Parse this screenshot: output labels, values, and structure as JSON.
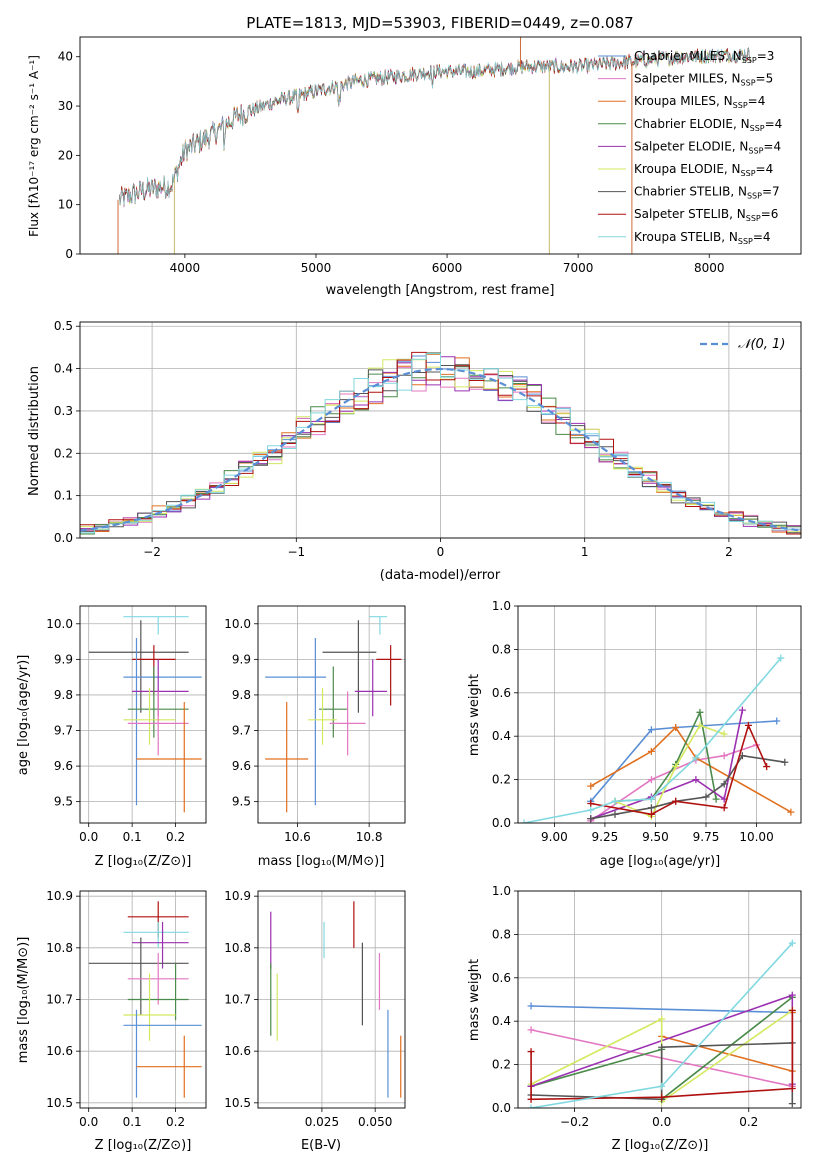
{
  "colors": {
    "chabrier_miles": "#5a8fd6",
    "salpeter_miles": "#e377c2",
    "kroupa_miles": "#e07020",
    "chabrier_elodie": "#4a8a4a",
    "salpeter_elodie": "#9b30b0",
    "kroupa_elodie": "#d4e860",
    "chabrier_stelib": "#555555",
    "salpeter_stelib": "#b01010",
    "kroupa_stelib": "#80d8e0"
  },
  "chart_data": [
    {
      "id": "spectrum",
      "type": "line",
      "title": "PLATE=1813, MJD=53903, FIBERID=0449, z=0.087",
      "xlabel": "wavelength [Angstrom, rest frame]",
      "ylabel": "Flux [fλ10⁻¹⁷ erg cm⁻² s⁻¹ A⁻¹]",
      "xlim": [
        3200,
        8700
      ],
      "ylim": [
        0,
        44
      ],
      "xticks": [
        4000,
        5000,
        6000,
        7000,
        8000
      ],
      "yticks": [
        0,
        10,
        20,
        30,
        40
      ],
      "continuum": [
        [
          3500,
          11
        ],
        [
          3700,
          13
        ],
        [
          3900,
          14
        ],
        [
          4000,
          21
        ],
        [
          4200,
          24
        ],
        [
          4400,
          28
        ],
        [
          4700,
          31
        ],
        [
          5000,
          33
        ],
        [
          5300,
          35
        ],
        [
          5600,
          36
        ],
        [
          5900,
          37
        ],
        [
          6200,
          37
        ],
        [
          6600,
          38
        ],
        [
          7000,
          38
        ],
        [
          7400,
          39
        ],
        [
          7800,
          40
        ],
        [
          8300,
          40.5
        ]
      ],
      "spikes": [
        [
          3490,
          0
        ],
        [
          3920,
          0
        ],
        [
          6560,
          45
        ],
        [
          6780,
          0
        ],
        [
          7410,
          0
        ]
      ],
      "legend": [
        {
          "label": "Chabrier MILES, N",
          "sub": "SSP",
          "val": "=3",
          "color_key": "chabrier_miles"
        },
        {
          "label": "Salpeter MILES, N",
          "sub": "SSP",
          "val": "=5",
          "color_key": "salpeter_miles"
        },
        {
          "label": "Kroupa MILES, N",
          "sub": "SSP",
          "val": "=4",
          "color_key": "kroupa_miles"
        },
        {
          "label": "Chabrier ELODIE, N",
          "sub": "SSP",
          "val": "=4",
          "color_key": "chabrier_elodie"
        },
        {
          "label": "Salpeter ELODIE, N",
          "sub": "SSP",
          "val": "=4",
          "color_key": "salpeter_elodie"
        },
        {
          "label": "Kroupa ELODIE, N",
          "sub": "SSP",
          "val": "=4",
          "color_key": "kroupa_elodie"
        },
        {
          "label": "Chabrier STELIB, N",
          "sub": "SSP",
          "val": "=7",
          "color_key": "chabrier_stelib"
        },
        {
          "label": "Salpeter STELIB, N",
          "sub": "SSP",
          "val": "=6",
          "color_key": "salpeter_stelib"
        },
        {
          "label": "Kroupa STELIB, N",
          "sub": "SSP",
          "val": "=4",
          "color_key": "kroupa_stelib"
        }
      ]
    },
    {
      "id": "residuals",
      "type": "step",
      "xlabel": "(data-model)/error",
      "ylabel": "Normed distribution",
      "xlim": [
        -2.5,
        2.5
      ],
      "ylim": [
        0,
        0.51
      ],
      "xticks": [
        -2,
        -1,
        0,
        1,
        2
      ],
      "yticks": [
        0.0,
        0.1,
        0.2,
        0.3,
        0.4,
        0.5
      ],
      "bin_width": 0.1,
      "legend_label": "𝒩(0, 1)",
      "gaussian": {
        "mu": 0,
        "sigma": 1,
        "color": "#5a8fd6"
      }
    },
    {
      "id": "z-age",
      "type": "errorbar",
      "xlabel": "Z [log₁₀(Z/Z⊙)]",
      "ylabel": "age  [log₁₀(age/yr)]",
      "xlim": [
        -0.02,
        0.27
      ],
      "ylim": [
        9.44,
        10.05
      ],
      "xticks": [
        0.0,
        0.1,
        0.2
      ],
      "yticks": [
        9.5,
        9.6,
        9.7,
        9.8,
        9.9,
        10.0
      ],
      "points": [
        {
          "k": "kroupa_stelib",
          "x": 0.16,
          "xerr": [
            0.08,
            0.23
          ],
          "y": 10.02,
          "yerr": [
            9.97,
            10.02
          ]
        },
        {
          "k": "chabrier_stelib",
          "x": 0.12,
          "xerr": [
            0.0,
            0.23
          ],
          "y": 9.92,
          "yerr": [
            9.75,
            10.01
          ]
        },
        {
          "k": "salpeter_stelib",
          "x": 0.15,
          "xerr": [
            0.1,
            0.2
          ],
          "y": 9.9,
          "yerr": [
            9.8,
            9.94
          ]
        },
        {
          "k": "chabrier_miles",
          "x": 0.11,
          "xerr": [
            0.08,
            0.26
          ],
          "y": 9.85,
          "yerr": [
            9.49,
            9.96
          ]
        },
        {
          "k": "salpeter_elodie",
          "x": 0.16,
          "xerr": [
            0.1,
            0.23
          ],
          "y": 9.81,
          "yerr": [
            9.74,
            9.9
          ]
        },
        {
          "k": "chabrier_elodie",
          "x": 0.15,
          "xerr": [
            0.09,
            0.23
          ],
          "y": 9.76,
          "yerr": [
            9.68,
            9.88
          ]
        },
        {
          "k": "kroupa_elodie",
          "x": 0.14,
          "xerr": [
            0.08,
            0.2
          ],
          "y": 9.73,
          "yerr": [
            9.66,
            9.82
          ]
        },
        {
          "k": "salpeter_miles",
          "x": 0.16,
          "xerr": [
            0.09,
            0.23
          ],
          "y": 9.72,
          "yerr": [
            9.63,
            9.81
          ]
        },
        {
          "k": "kroupa_miles",
          "x": 0.22,
          "xerr": [
            0.11,
            0.26
          ],
          "y": 9.62,
          "yerr": [
            9.47,
            9.78
          ]
        }
      ]
    },
    {
      "id": "mass-age",
      "type": "errorbar",
      "xlabel": "mass [log₁₀(M/M⊙)]",
      "xlim": [
        10.49,
        10.9
      ],
      "ylim": [
        9.44,
        10.05
      ],
      "xticks": [
        10.6,
        10.8
      ],
      "yticks": [
        9.5,
        9.6,
        9.7,
        9.8,
        9.9,
        10.0
      ],
      "points": [
        {
          "k": "kroupa_stelib",
          "x": 10.83,
          "xerr": [
            10.8,
            10.85
          ],
          "y": 10.02,
          "yerr": [
            9.97,
            10.02
          ]
        },
        {
          "k": "chabrier_stelib",
          "x": 10.77,
          "xerr": [
            10.67,
            10.82
          ],
          "y": 9.92,
          "yerr": [
            9.75,
            10.01
          ]
        },
        {
          "k": "salpeter_stelib",
          "x": 10.86,
          "xerr": [
            10.82,
            10.89
          ],
          "y": 9.9,
          "yerr": [
            9.77,
            9.94
          ]
        },
        {
          "k": "chabrier_miles",
          "x": 10.65,
          "xerr": [
            10.51,
            10.68
          ],
          "y": 9.85,
          "yerr": [
            9.49,
            9.96
          ]
        },
        {
          "k": "salpeter_elodie",
          "x": 10.81,
          "xerr": [
            10.76,
            10.85
          ],
          "y": 9.81,
          "yerr": [
            9.74,
            9.9
          ]
        },
        {
          "k": "chabrier_elodie",
          "x": 10.7,
          "xerr": [
            10.66,
            10.74
          ],
          "y": 9.76,
          "yerr": [
            9.68,
            9.88
          ]
        },
        {
          "k": "kroupa_elodie",
          "x": 10.67,
          "xerr": [
            10.63,
            10.71
          ],
          "y": 9.73,
          "yerr": [
            9.66,
            9.82
          ]
        },
        {
          "k": "salpeter_miles",
          "x": 10.74,
          "xerr": [
            10.69,
            10.79
          ],
          "y": 9.72,
          "yerr": [
            9.63,
            9.81
          ]
        },
        {
          "k": "kroupa_miles",
          "x": 10.57,
          "xerr": [
            10.51,
            10.63
          ],
          "y": 9.62,
          "yerr": [
            9.47,
            9.78
          ]
        }
      ]
    },
    {
      "id": "age-weight",
      "type": "line",
      "xlabel": "age  [log₁₀(age/yr)]",
      "ylabel": "mass weight",
      "xlim": [
        8.82,
        10.22
      ],
      "ylim": [
        0,
        1.0
      ],
      "xticks": [
        9.0,
        9.25,
        9.5,
        9.75,
        10.0
      ],
      "xticklabels": [
        "9.00",
        "9.25",
        "9.50",
        "9.75",
        "10.00"
      ],
      "yticks": [
        0.0,
        0.2,
        0.4,
        0.6,
        0.8,
        1.0
      ],
      "series": [
        {
          "k": "chabrier_miles",
          "x": [
            9.18,
            9.48,
            9.6,
            10.1
          ],
          "y": [
            0.1,
            0.43,
            0.44,
            0.47
          ]
        },
        {
          "k": "salpeter_miles",
          "x": [
            9.18,
            9.48,
            9.7,
            9.84,
            10.0
          ],
          "y": [
            0.01,
            0.2,
            0.29,
            0.31,
            0.36
          ]
        },
        {
          "k": "kroupa_miles",
          "x": [
            9.18,
            9.48,
            9.6,
            9.7,
            10.17
          ],
          "y": [
            0.17,
            0.33,
            0.44,
            0.3,
            0.05
          ]
        },
        {
          "k": "chabrier_elodie",
          "x": [
            9.3,
            9.48,
            9.6,
            9.72,
            9.8
          ],
          "y": [
            0.1,
            0.11,
            0.27,
            0.51,
            0.11
          ]
        },
        {
          "k": "salpeter_elodie",
          "x": [
            9.18,
            9.48,
            9.7,
            9.84,
            9.93
          ],
          "y": [
            0.02,
            0.12,
            0.2,
            0.11,
            0.52
          ]
        },
        {
          "k": "kroupa_elodie",
          "x": [
            9.3,
            9.48,
            9.6,
            9.72,
            9.84
          ],
          "y": [
            0.1,
            0.03,
            0.26,
            0.45,
            0.41
          ]
        },
        {
          "k": "chabrier_stelib",
          "x": [
            9.18,
            9.3,
            9.48,
            9.6,
            9.75,
            9.84,
            9.93,
            10.14
          ],
          "y": [
            0.02,
            0.04,
            0.07,
            0.1,
            0.12,
            0.18,
            0.31,
            0.28
          ]
        },
        {
          "k": "salpeter_stelib",
          "x": [
            9.18,
            9.48,
            9.6,
            9.84,
            9.96,
            10.05
          ],
          "y": [
            0.09,
            0.04,
            0.1,
            0.07,
            0.45,
            0.26
          ]
        },
        {
          "k": "kroupa_stelib",
          "x": [
            8.85,
            9.18,
            9.3,
            9.48,
            9.7,
            10.12
          ],
          "y": [
            0.0,
            0.06,
            0.1,
            0.11,
            0.3,
            0.76
          ]
        }
      ]
    },
    {
      "id": "z-mass",
      "type": "errorbar",
      "xlabel": "Z [log₁₀(Z/Z⊙)]",
      "ylabel": "mass [log₁₀(M/M⊙)]",
      "xlim": [
        -0.02,
        0.27
      ],
      "ylim": [
        10.49,
        10.91
      ],
      "xticks": [
        0.0,
        0.1,
        0.2
      ],
      "yticks": [
        10.5,
        10.6,
        10.7,
        10.8,
        10.9
      ],
      "points": [
        {
          "k": "salpeter_stelib",
          "x": 0.16,
          "xerr": [
            0.09,
            0.23
          ],
          "y": 10.86,
          "yerr": [
            10.82,
            10.89
          ]
        },
        {
          "k": "kroupa_stelib",
          "x": 0.16,
          "xerr": [
            0.08,
            0.23
          ],
          "y": 10.83,
          "yerr": [
            10.8,
            10.85
          ]
        },
        {
          "k": "salpeter_elodie",
          "x": 0.17,
          "xerr": [
            0.1,
            0.23
          ],
          "y": 10.81,
          "yerr": [
            10.76,
            10.85
          ]
        },
        {
          "k": "chabrier_stelib",
          "x": 0.12,
          "xerr": [
            0.0,
            0.23
          ],
          "y": 10.77,
          "yerr": [
            10.67,
            10.82
          ]
        },
        {
          "k": "salpeter_miles",
          "x": 0.16,
          "xerr": [
            0.09,
            0.23
          ],
          "y": 10.74,
          "yerr": [
            10.69,
            10.79
          ]
        },
        {
          "k": "chabrier_elodie",
          "x": 0.2,
          "xerr": [
            0.09,
            0.23
          ],
          "y": 10.7,
          "yerr": [
            10.66,
            10.77
          ]
        },
        {
          "k": "kroupa_elodie",
          "x": 0.14,
          "xerr": [
            0.08,
            0.2
          ],
          "y": 10.67,
          "yerr": [
            10.62,
            10.75
          ]
        },
        {
          "k": "chabrier_miles",
          "x": 0.11,
          "xerr": [
            0.08,
            0.26
          ],
          "y": 10.65,
          "yerr": [
            10.51,
            10.68
          ]
        },
        {
          "k": "kroupa_miles",
          "x": 0.22,
          "xerr": [
            0.11,
            0.26
          ],
          "y": 10.57,
          "yerr": [
            10.51,
            10.63
          ]
        }
      ]
    },
    {
      "id": "ebv-mass",
      "type": "errorbar",
      "xlabel": "E(B-V)",
      "xlim": [
        -0.005,
        0.064
      ],
      "ylim": [
        10.49,
        10.91
      ],
      "xticks": [
        0.025,
        0.05
      ],
      "xticklabels": [
        "0.025",
        "0.050"
      ],
      "yticks": [
        10.5,
        10.6,
        10.7,
        10.8,
        10.9
      ],
      "points": [
        {
          "k": "salpeter_elodie",
          "x": 0.001,
          "y": 10.81,
          "yerr": [
            10.76,
            10.87
          ]
        },
        {
          "k": "chabrier_elodie",
          "x": 0.001,
          "y": 10.7,
          "yerr": [
            10.63,
            10.77
          ]
        },
        {
          "k": "kroupa_elodie",
          "x": 0.004,
          "y": 10.67,
          "yerr": [
            10.62,
            10.75
          ]
        },
        {
          "k": "kroupa_stelib",
          "x": 0.026,
          "y": 10.83,
          "yerr": [
            10.78,
            10.85
          ]
        },
        {
          "k": "salpeter_stelib",
          "x": 0.04,
          "y": 10.86,
          "yerr": [
            10.8,
            10.89
          ]
        },
        {
          "k": "chabrier_stelib",
          "x": 0.044,
          "y": 10.77,
          "yerr": [
            10.65,
            10.81
          ]
        },
        {
          "k": "salpeter_miles",
          "x": 0.052,
          "y": 10.74,
          "yerr": [
            10.68,
            10.79
          ]
        },
        {
          "k": "chabrier_miles",
          "x": 0.056,
          "y": 10.65,
          "yerr": [
            10.51,
            10.68
          ]
        },
        {
          "k": "kroupa_miles",
          "x": 0.062,
          "y": 10.57,
          "yerr": [
            10.51,
            10.63
          ]
        }
      ]
    },
    {
      "id": "z-weight",
      "type": "line",
      "xlabel": "Z [log₁₀(Z/Z⊙)]",
      "ylabel": "mass weight",
      "xlim": [
        -0.33,
        0.32
      ],
      "ylim": [
        0,
        1.0
      ],
      "xticks": [
        -0.2,
        0.0,
        0.2
      ],
      "yticks": [
        0.0,
        0.2,
        0.4,
        0.6,
        0.8,
        1.0
      ],
      "series": [
        {
          "k": "chabrier_miles",
          "x": [
            -0.3,
            0.3
          ],
          "y": [
            0.47,
            0.44
          ]
        },
        {
          "k": "salpeter_miles",
          "x": [
            -0.3,
            0.3
          ],
          "y": [
            0.36,
            0.1
          ]
        },
        {
          "k": "kroupa_miles",
          "x": [
            0.0,
            0.3,
            0.3
          ],
          "y": [
            0.33,
            0.17,
            0.44
          ]
        },
        {
          "k": "chabrier_elodie",
          "x": [
            -0.3,
            0.0,
            0.0,
            0.3
          ],
          "y": [
            0.1,
            0.27,
            0.04,
            0.51
          ]
        },
        {
          "k": "salpeter_elodie",
          "x": [
            -0.3,
            0.3,
            0.3
          ],
          "y": [
            0.1,
            0.52,
            0.11
          ]
        },
        {
          "k": "kroupa_elodie",
          "x": [
            -0.3,
            0.0,
            0.0,
            0.3
          ],
          "y": [
            0.11,
            0.41,
            0.03,
            0.45
          ]
        },
        {
          "k": "chabrier_stelib",
          "x": [
            -0.3,
            0.0,
            0.0,
            0.3,
            0.3
          ],
          "y": [
            0.06,
            0.04,
            0.28,
            0.3,
            0.02
          ]
        },
        {
          "k": "salpeter_stelib",
          "x": [
            -0.3,
            -0.3,
            0.0,
            0.3,
            0.3
          ],
          "y": [
            0.26,
            0.04,
            0.05,
            0.09,
            0.45
          ]
        },
        {
          "k": "kroupa_stelib",
          "x": [
            -0.3,
            0.0,
            0.3
          ],
          "y": [
            0.0,
            0.1,
            0.76
          ]
        }
      ]
    }
  ]
}
